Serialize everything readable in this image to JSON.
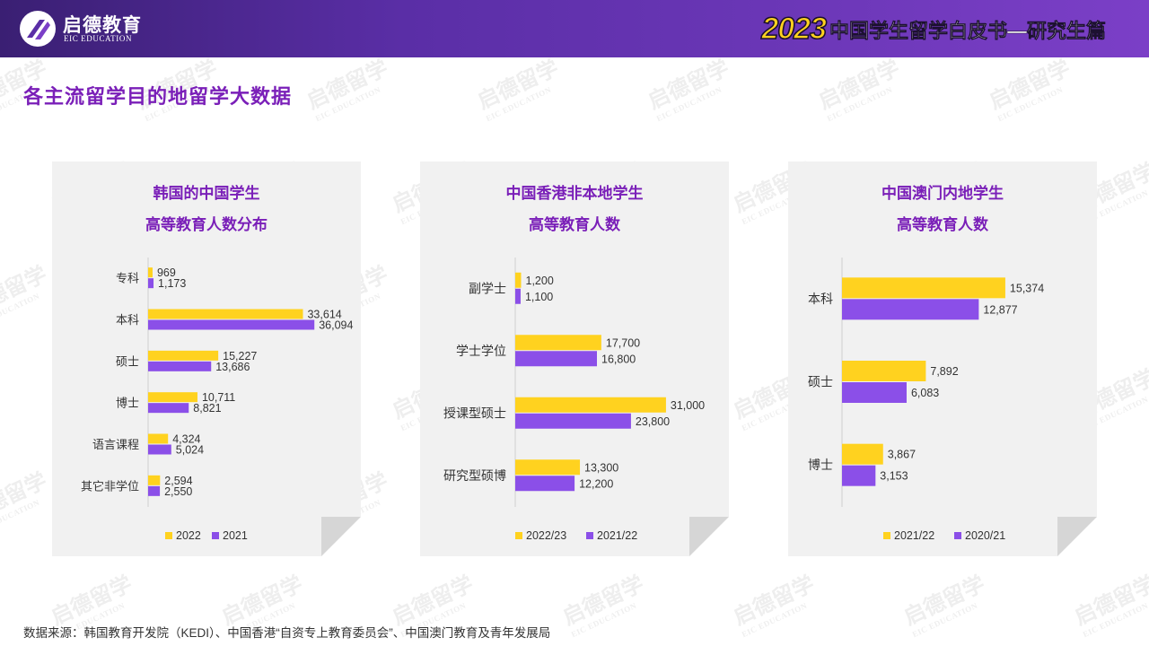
{
  "header": {
    "brand_cn": "启德教育",
    "brand_en": "EIC EDUCATION",
    "year": "2023",
    "title": "中国学生留学白皮书—研究生篇"
  },
  "section_title": "各主流留学目的地留学大数据",
  "watermark": {
    "cn": "启德留学",
    "en": "EIC EDUCATION"
  },
  "colors": {
    "series_current": "#ffd21f",
    "series_previous": "#8b4fe8",
    "title_purple": "#7a1fb8"
  },
  "chart_data": [
    {
      "type": "bar",
      "orientation": "horizontal",
      "title_lines": [
        "韩国的中国学生",
        "高等教育人数分布"
      ],
      "categories": [
        "专科",
        "本科",
        "硕士",
        "博士",
        "语言课程",
        "其它非学位"
      ],
      "series": [
        {
          "name": "2022",
          "values": [
            969,
            33614,
            15227,
            10711,
            4324,
            2594
          ],
          "labels": [
            "969",
            "33,614",
            "15,227",
            "10,711",
            "4,324",
            "2,594"
          ]
        },
        {
          "name": "2021",
          "values": [
            1173,
            36094,
            13686,
            8821,
            5024,
            2550
          ],
          "labels": [
            "1,173",
            "36,094",
            "13,686",
            "8,821",
            "5,024",
            "2,550"
          ]
        }
      ],
      "xlim": [
        0,
        38000
      ],
      "legend": "bottom",
      "grid": false
    },
    {
      "type": "bar",
      "orientation": "horizontal",
      "title_lines": [
        "中国香港非本地学生",
        "高等教育人数"
      ],
      "categories": [
        "副学士",
        "学士学位",
        "授课型硕士",
        "研究型硕博"
      ],
      "series": [
        {
          "name": "2022/23",
          "values": [
            1200,
            17700,
            31000,
            13300
          ],
          "labels": [
            "1,200",
            "17,700",
            "31,000",
            "13,300"
          ]
        },
        {
          "name": "2021/22",
          "values": [
            1100,
            16800,
            23800,
            12200
          ],
          "labels": [
            "1,100",
            "16,800",
            "23,800",
            "12,200"
          ]
        }
      ],
      "xlim": [
        0,
        36000
      ],
      "legend": "bottom",
      "grid": false
    },
    {
      "type": "bar",
      "orientation": "horizontal",
      "title_lines": [
        "中国澳门内地学生",
        "高等教育人数"
      ],
      "categories": [
        "本科",
        "硕士",
        "博士"
      ],
      "series": [
        {
          "name": "2021/22",
          "values": [
            15374,
            7892,
            3867
          ],
          "labels": [
            "15,374",
            "7,892",
            "3,867"
          ]
        },
        {
          "name": "2020/21",
          "values": [
            12877,
            6083,
            3153
          ],
          "labels": [
            "12,877",
            "6,083",
            "3,153"
          ]
        }
      ],
      "xlim": [
        0,
        18000
      ],
      "legend": "bottom",
      "grid": false
    }
  ],
  "footer": "数据来源：韩国教育开发院（KEDI）、中国香港“自资专上教育委员会”、中国澳门教育及青年发展局"
}
